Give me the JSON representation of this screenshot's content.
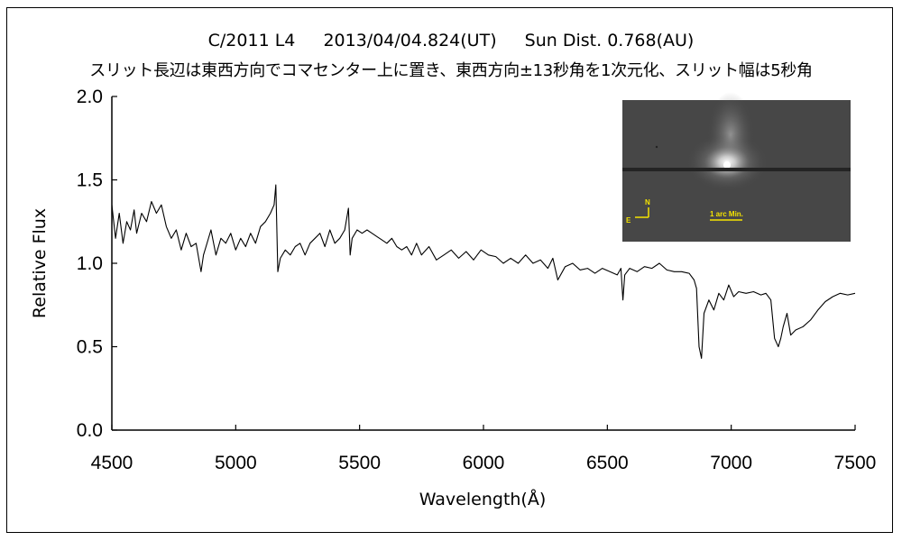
{
  "header": {
    "title": "C/2011 L4 　 2013/04/04.824(UT) 　 Sun Dist. 0.768(AU)",
    "subtitle": "スリット長辺は東西方向でコマセンター上に置き、東西方向±13秒角を1次元化、スリット幅は5秒角"
  },
  "inset": {
    "north_label": "N",
    "east_label": "E",
    "scale_label": "1 arc Min."
  },
  "chart_data": {
    "type": "line",
    "title": "C/2011 L4 　 2013/04/04.824(UT) 　 Sun Dist. 0.768(AU)",
    "subtitle": "スリット長辺は東西方向でコマセンター上に置き、東西方向±13秒角を1次元化、スリット幅は5秒角",
    "xlabel": "Wavelength(Å)",
    "ylabel": "Relative Flux",
    "xlim": [
      4500,
      7500
    ],
    "ylim": [
      0.0,
      2.0
    ],
    "xticks": [
      "4500",
      "5000",
      "5500",
      "6000",
      "6500",
      "7000",
      "7500"
    ],
    "yticks": [
      "0.0",
      "0.5",
      "1.0",
      "1.5",
      "2.0"
    ],
    "grid": false,
    "legend": "none",
    "line_color": "#000000",
    "series": [
      {
        "x": [
          4500,
          4515,
          4530,
          4545,
          4560,
          4575,
          4590,
          4600,
          4620,
          4640,
          4660,
          4680,
          4700,
          4720,
          4740,
          4760,
          4780,
          4800,
          4820,
          4840,
          4860,
          4870,
          4880,
          4900,
          4920,
          4940,
          4960,
          4980,
          5000,
          5020,
          5040,
          5060,
          5080,
          5100,
          5120,
          5140,
          5155,
          5162,
          5170,
          5180,
          5200,
          5220,
          5240,
          5260,
          5280,
          5300,
          5320,
          5340,
          5360,
          5380,
          5400,
          5420,
          5440,
          5455,
          5462,
          5470,
          5490,
          5510,
          5530,
          5550,
          5570,
          5590,
          5610,
          5630,
          5650,
          5670,
          5690,
          5710,
          5730,
          5750,
          5780,
          5810,
          5840,
          5870,
          5900,
          5930,
          5960,
          5990,
          6020,
          6050,
          6080,
          6110,
          6140,
          6170,
          6200,
          6230,
          6260,
          6280,
          6300,
          6330,
          6360,
          6390,
          6420,
          6450,
          6480,
          6510,
          6540,
          6555,
          6563,
          6570,
          6590,
          6620,
          6650,
          6680,
          6710,
          6740,
          6770,
          6800,
          6830,
          6850,
          6860,
          6870,
          6880,
          6890,
          6910,
          6930,
          6950,
          6970,
          6990,
          7010,
          7030,
          7060,
          7090,
          7120,
          7140,
          7160,
          7175,
          7190,
          7200,
          7210,
          7225,
          7240,
          7260,
          7290,
          7320,
          7350,
          7380,
          7410,
          7440,
          7470,
          7500
        ],
        "values": [
          1.35,
          1.15,
          1.3,
          1.12,
          1.25,
          1.2,
          1.32,
          1.18,
          1.3,
          1.25,
          1.37,
          1.3,
          1.35,
          1.22,
          1.15,
          1.2,
          1.08,
          1.18,
          1.1,
          1.12,
          0.95,
          1.05,
          1.1,
          1.2,
          1.05,
          1.15,
          1.12,
          1.18,
          1.08,
          1.15,
          1.1,
          1.18,
          1.12,
          1.22,
          1.25,
          1.3,
          1.35,
          1.47,
          0.95,
          1.03,
          1.08,
          1.05,
          1.1,
          1.12,
          1.05,
          1.12,
          1.15,
          1.18,
          1.1,
          1.2,
          1.12,
          1.15,
          1.2,
          1.33,
          1.05,
          1.15,
          1.2,
          1.18,
          1.2,
          1.18,
          1.16,
          1.14,
          1.12,
          1.15,
          1.1,
          1.08,
          1.1,
          1.05,
          1.12,
          1.05,
          1.1,
          1.02,
          1.05,
          1.08,
          1.03,
          1.07,
          1.02,
          1.08,
          1.05,
          1.04,
          1.0,
          1.03,
          1.0,
          1.05,
          1.0,
          1.02,
          0.97,
          1.03,
          0.9,
          0.98,
          1.0,
          0.96,
          0.97,
          0.94,
          0.97,
          0.95,
          0.93,
          0.97,
          0.78,
          0.93,
          0.97,
          0.95,
          0.98,
          0.97,
          1.0,
          0.96,
          0.95,
          0.95,
          0.94,
          0.9,
          0.85,
          0.5,
          0.43,
          0.7,
          0.78,
          0.72,
          0.82,
          0.78,
          0.87,
          0.8,
          0.83,
          0.82,
          0.83,
          0.81,
          0.82,
          0.78,
          0.55,
          0.5,
          0.55,
          0.62,
          0.7,
          0.57,
          0.6,
          0.62,
          0.66,
          0.72,
          0.77,
          0.8,
          0.82,
          0.81,
          0.82
        ]
      }
    ]
  }
}
